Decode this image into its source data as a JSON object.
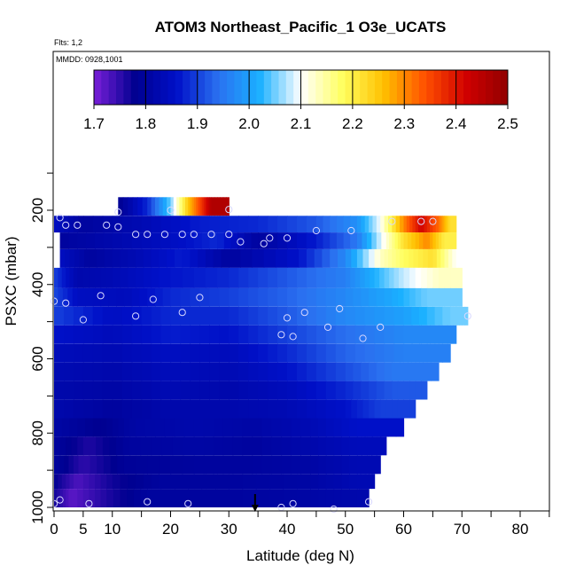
{
  "chart_data": {
    "type": "heatmap",
    "title": "ATOM3 Northeast_Pacific_1 O3e_UCATS",
    "flights_note": "Flts: 1,2",
    "date_note": "MMDD: 0928,1001",
    "xlabel": "Latitude (deg N)",
    "ylabel": "PSXC (mbar)",
    "xlim": [
      0,
      80
    ],
    "ylim": [
      1000,
      50
    ],
    "x_ticks": [
      0,
      5,
      10,
      20,
      30,
      40,
      50,
      60,
      70,
      80
    ],
    "y_ticks": [
      200,
      400,
      600,
      800,
      1000
    ],
    "colorbar": {
      "min": 1.7,
      "max": 2.5,
      "ticks": [
        1.7,
        1.8,
        1.9,
        2.0,
        2.1,
        2.2,
        2.3,
        2.4,
        2.5
      ],
      "tick_labels": [
        "1.7",
        "1.8",
        "1.9",
        "2.0",
        "2.1",
        "2.2",
        "2.3",
        "2.4",
        "2.5"
      ],
      "colors": [
        "#7a1fd8",
        "#000090",
        "#0010c8",
        "#2a70f0",
        "#1ab0ff",
        "#ffffff",
        "#ffff60",
        "#ffc000",
        "#ff5000",
        "#d00000",
        "#900000"
      ]
    },
    "layers": [
      {
        "p_top": 165,
        "p_bot": 215,
        "x_start": 11,
        "x_end": 30,
        "segments": [
          [
            11,
            1.78
          ],
          [
            16,
            1.88
          ],
          [
            20,
            2.05
          ],
          [
            23,
            2.25
          ],
          [
            25,
            2.35
          ],
          [
            27,
            2.46
          ]
        ]
      },
      {
        "p_top": 215,
        "p_bot": 260,
        "x_start": 0,
        "x_end": 69,
        "segments": [
          [
            0,
            1.85
          ],
          [
            5,
            1.8
          ],
          [
            15,
            1.83
          ],
          [
            25,
            1.87
          ],
          [
            35,
            1.88
          ],
          [
            45,
            1.92
          ],
          [
            52,
            1.98
          ],
          [
            56,
            2.1
          ],
          [
            60,
            2.3
          ],
          [
            63,
            2.42
          ],
          [
            66,
            2.32
          ],
          [
            68,
            2.22
          ]
        ]
      },
      {
        "p_top": 260,
        "p_bot": 305,
        "x_start": 1,
        "x_end": 69,
        "segments": [
          [
            1,
            1.8
          ],
          [
            10,
            1.82
          ],
          [
            20,
            1.85
          ],
          [
            28,
            1.88
          ],
          [
            35,
            1.8
          ],
          [
            45,
            1.87
          ],
          [
            52,
            1.95
          ],
          [
            57,
            2.12
          ],
          [
            60,
            2.22
          ],
          [
            64,
            2.3
          ],
          [
            67,
            2.2
          ]
        ]
      },
      {
        "p_top": 305,
        "p_bot": 355,
        "x_start": 1,
        "x_end": 70,
        "segments": [
          [
            1,
            1.85
          ],
          [
            6,
            1.8
          ],
          [
            14,
            1.83
          ],
          [
            22,
            1.87
          ],
          [
            30,
            1.8
          ],
          [
            42,
            1.86
          ],
          [
            50,
            1.97
          ],
          [
            56,
            2.13
          ],
          [
            60,
            2.18
          ],
          [
            65,
            2.22
          ],
          [
            69,
            2.1
          ]
        ]
      },
      {
        "p_top": 355,
        "p_bot": 410,
        "x_start": 0,
        "x_end": 70,
        "segments": [
          [
            0,
            1.9
          ],
          [
            4,
            1.82
          ],
          [
            10,
            1.83
          ],
          [
            18,
            1.86
          ],
          [
            30,
            1.88
          ],
          [
            40,
            1.92
          ],
          [
            50,
            1.96
          ],
          [
            55,
            2.02
          ],
          [
            60,
            2.08
          ],
          [
            66,
            2.13
          ]
        ]
      },
      {
        "p_top": 410,
        "p_bot": 460,
        "x_start": -1,
        "x_end": 70,
        "segments": [
          [
            -1,
            1.92
          ],
          [
            4,
            1.85
          ],
          [
            12,
            1.84
          ],
          [
            20,
            1.88
          ],
          [
            30,
            1.9
          ],
          [
            40,
            1.93
          ],
          [
            50,
            1.97
          ],
          [
            58,
            2.01
          ],
          [
            64,
            2.05
          ]
        ]
      },
      {
        "p_top": 460,
        "p_bot": 510,
        "x_start": 0,
        "x_end": 71,
        "segments": [
          [
            0,
            1.9
          ],
          [
            10,
            1.85
          ],
          [
            20,
            1.88
          ],
          [
            30,
            1.88
          ],
          [
            40,
            1.92
          ],
          [
            50,
            1.97
          ],
          [
            60,
            2.0
          ],
          [
            68,
            2.05
          ]
        ]
      },
      {
        "p_top": 510,
        "p_bot": 560,
        "x_start": 0,
        "x_end": 69,
        "segments": [
          [
            0,
            1.86
          ],
          [
            10,
            1.84
          ],
          [
            20,
            1.87
          ],
          [
            30,
            1.86
          ],
          [
            40,
            1.9
          ],
          [
            50,
            1.94
          ],
          [
            60,
            1.97
          ]
        ]
      },
      {
        "p_top": 560,
        "p_bot": 610,
        "x_start": 0,
        "x_end": 68,
        "segments": [
          [
            0,
            1.84
          ],
          [
            10,
            1.83
          ],
          [
            20,
            1.85
          ],
          [
            30,
            1.84
          ],
          [
            40,
            1.88
          ],
          [
            50,
            1.93
          ],
          [
            60,
            1.96
          ]
        ]
      },
      {
        "p_top": 610,
        "p_bot": 660,
        "x_start": 0,
        "x_end": 66,
        "segments": [
          [
            0,
            1.83
          ],
          [
            10,
            1.82
          ],
          [
            20,
            1.84
          ],
          [
            30,
            1.83
          ],
          [
            40,
            1.86
          ],
          [
            50,
            1.91
          ],
          [
            58,
            1.95
          ]
        ]
      },
      {
        "p_top": 660,
        "p_bot": 710,
        "x_start": 0,
        "x_end": 64,
        "segments": [
          [
            0,
            1.82
          ],
          [
            10,
            1.81
          ],
          [
            20,
            1.83
          ],
          [
            30,
            1.82
          ],
          [
            40,
            1.84
          ],
          [
            50,
            1.88
          ],
          [
            58,
            1.92
          ]
        ]
      },
      {
        "p_top": 710,
        "p_bot": 760,
        "x_start": 0,
        "x_end": 62,
        "segments": [
          [
            0,
            1.82
          ],
          [
            10,
            1.8
          ],
          [
            20,
            1.82
          ],
          [
            30,
            1.82
          ],
          [
            40,
            1.83
          ],
          [
            50,
            1.86
          ],
          [
            56,
            1.9
          ]
        ]
      },
      {
        "p_top": 760,
        "p_bot": 810,
        "x_start": 0,
        "x_end": 60,
        "segments": [
          [
            0,
            1.81
          ],
          [
            8,
            1.78
          ],
          [
            14,
            1.81
          ],
          [
            24,
            1.82
          ],
          [
            34,
            1.81
          ],
          [
            44,
            1.83
          ],
          [
            52,
            1.86
          ]
        ]
      },
      {
        "p_top": 810,
        "p_bot": 860,
        "x_start": 0,
        "x_end": 57,
        "segments": [
          [
            0,
            1.8
          ],
          [
            6,
            1.76
          ],
          [
            13,
            1.8
          ],
          [
            24,
            1.81
          ],
          [
            34,
            1.8
          ],
          [
            44,
            1.82
          ],
          [
            52,
            1.84
          ]
        ]
      },
      {
        "p_top": 860,
        "p_bot": 910,
        "x_start": 0,
        "x_end": 56,
        "segments": [
          [
            0,
            1.8
          ],
          [
            5,
            1.75
          ],
          [
            12,
            1.79
          ],
          [
            24,
            1.8
          ],
          [
            34,
            1.8
          ],
          [
            44,
            1.81
          ],
          [
            52,
            1.83
          ]
        ]
      },
      {
        "p_top": 910,
        "p_bot": 950,
        "x_start": 0,
        "x_end": 55,
        "segments": [
          [
            0,
            1.78
          ],
          [
            4,
            1.73
          ],
          [
            10,
            1.77
          ],
          [
            18,
            1.8
          ],
          [
            30,
            1.8
          ],
          [
            44,
            1.81
          ],
          [
            52,
            1.83
          ]
        ]
      },
      {
        "p_top": 950,
        "p_bot": 1000,
        "x_start": 0,
        "x_end": 54,
        "segments": [
          [
            0,
            1.77
          ],
          [
            3,
            1.72
          ],
          [
            9,
            1.76
          ],
          [
            16,
            1.8
          ],
          [
            30,
            1.8
          ],
          [
            44,
            1.81
          ],
          [
            52,
            1.82
          ]
        ]
      }
    ],
    "observations": [
      [
        11,
        205
      ],
      [
        20,
        200
      ],
      [
        30,
        198
      ],
      [
        1,
        220
      ],
      [
        2,
        240
      ],
      [
        4,
        240
      ],
      [
        9,
        240
      ],
      [
        11,
        245
      ],
      [
        14,
        265
      ],
      [
        16,
        265
      ],
      [
        19,
        265
      ],
      [
        22,
        265
      ],
      [
        24,
        265
      ],
      [
        27,
        265
      ],
      [
        30,
        265
      ],
      [
        32,
        285
      ],
      [
        36,
        290
      ],
      [
        37,
        275
      ],
      [
        40,
        275
      ],
      [
        45,
        255
      ],
      [
        51,
        255
      ],
      [
        58,
        230
      ],
      [
        63,
        230
      ],
      [
        65,
        230
      ],
      [
        0,
        445
      ],
      [
        2,
        450
      ],
      [
        8,
        430
      ],
      [
        14,
        485
      ],
      [
        17,
        440
      ],
      [
        22,
        475
      ],
      [
        25,
        435
      ],
      [
        5,
        495
      ],
      [
        39,
        535
      ],
      [
        40,
        490
      ],
      [
        41,
        540
      ],
      [
        43,
        475
      ],
      [
        47,
        515
      ],
      [
        49,
        465
      ],
      [
        53,
        545
      ],
      [
        56,
        515
      ],
      [
        71,
        485
      ],
      [
        0,
        990
      ],
      [
        1,
        980
      ],
      [
        6,
        990
      ],
      [
        16,
        985
      ],
      [
        23,
        990
      ],
      [
        39,
        1000
      ],
      [
        41,
        990
      ],
      [
        48,
        1005
      ],
      [
        54,
        985
      ]
    ],
    "arrow_marker": {
      "x": 34.5,
      "p": 1000
    }
  }
}
